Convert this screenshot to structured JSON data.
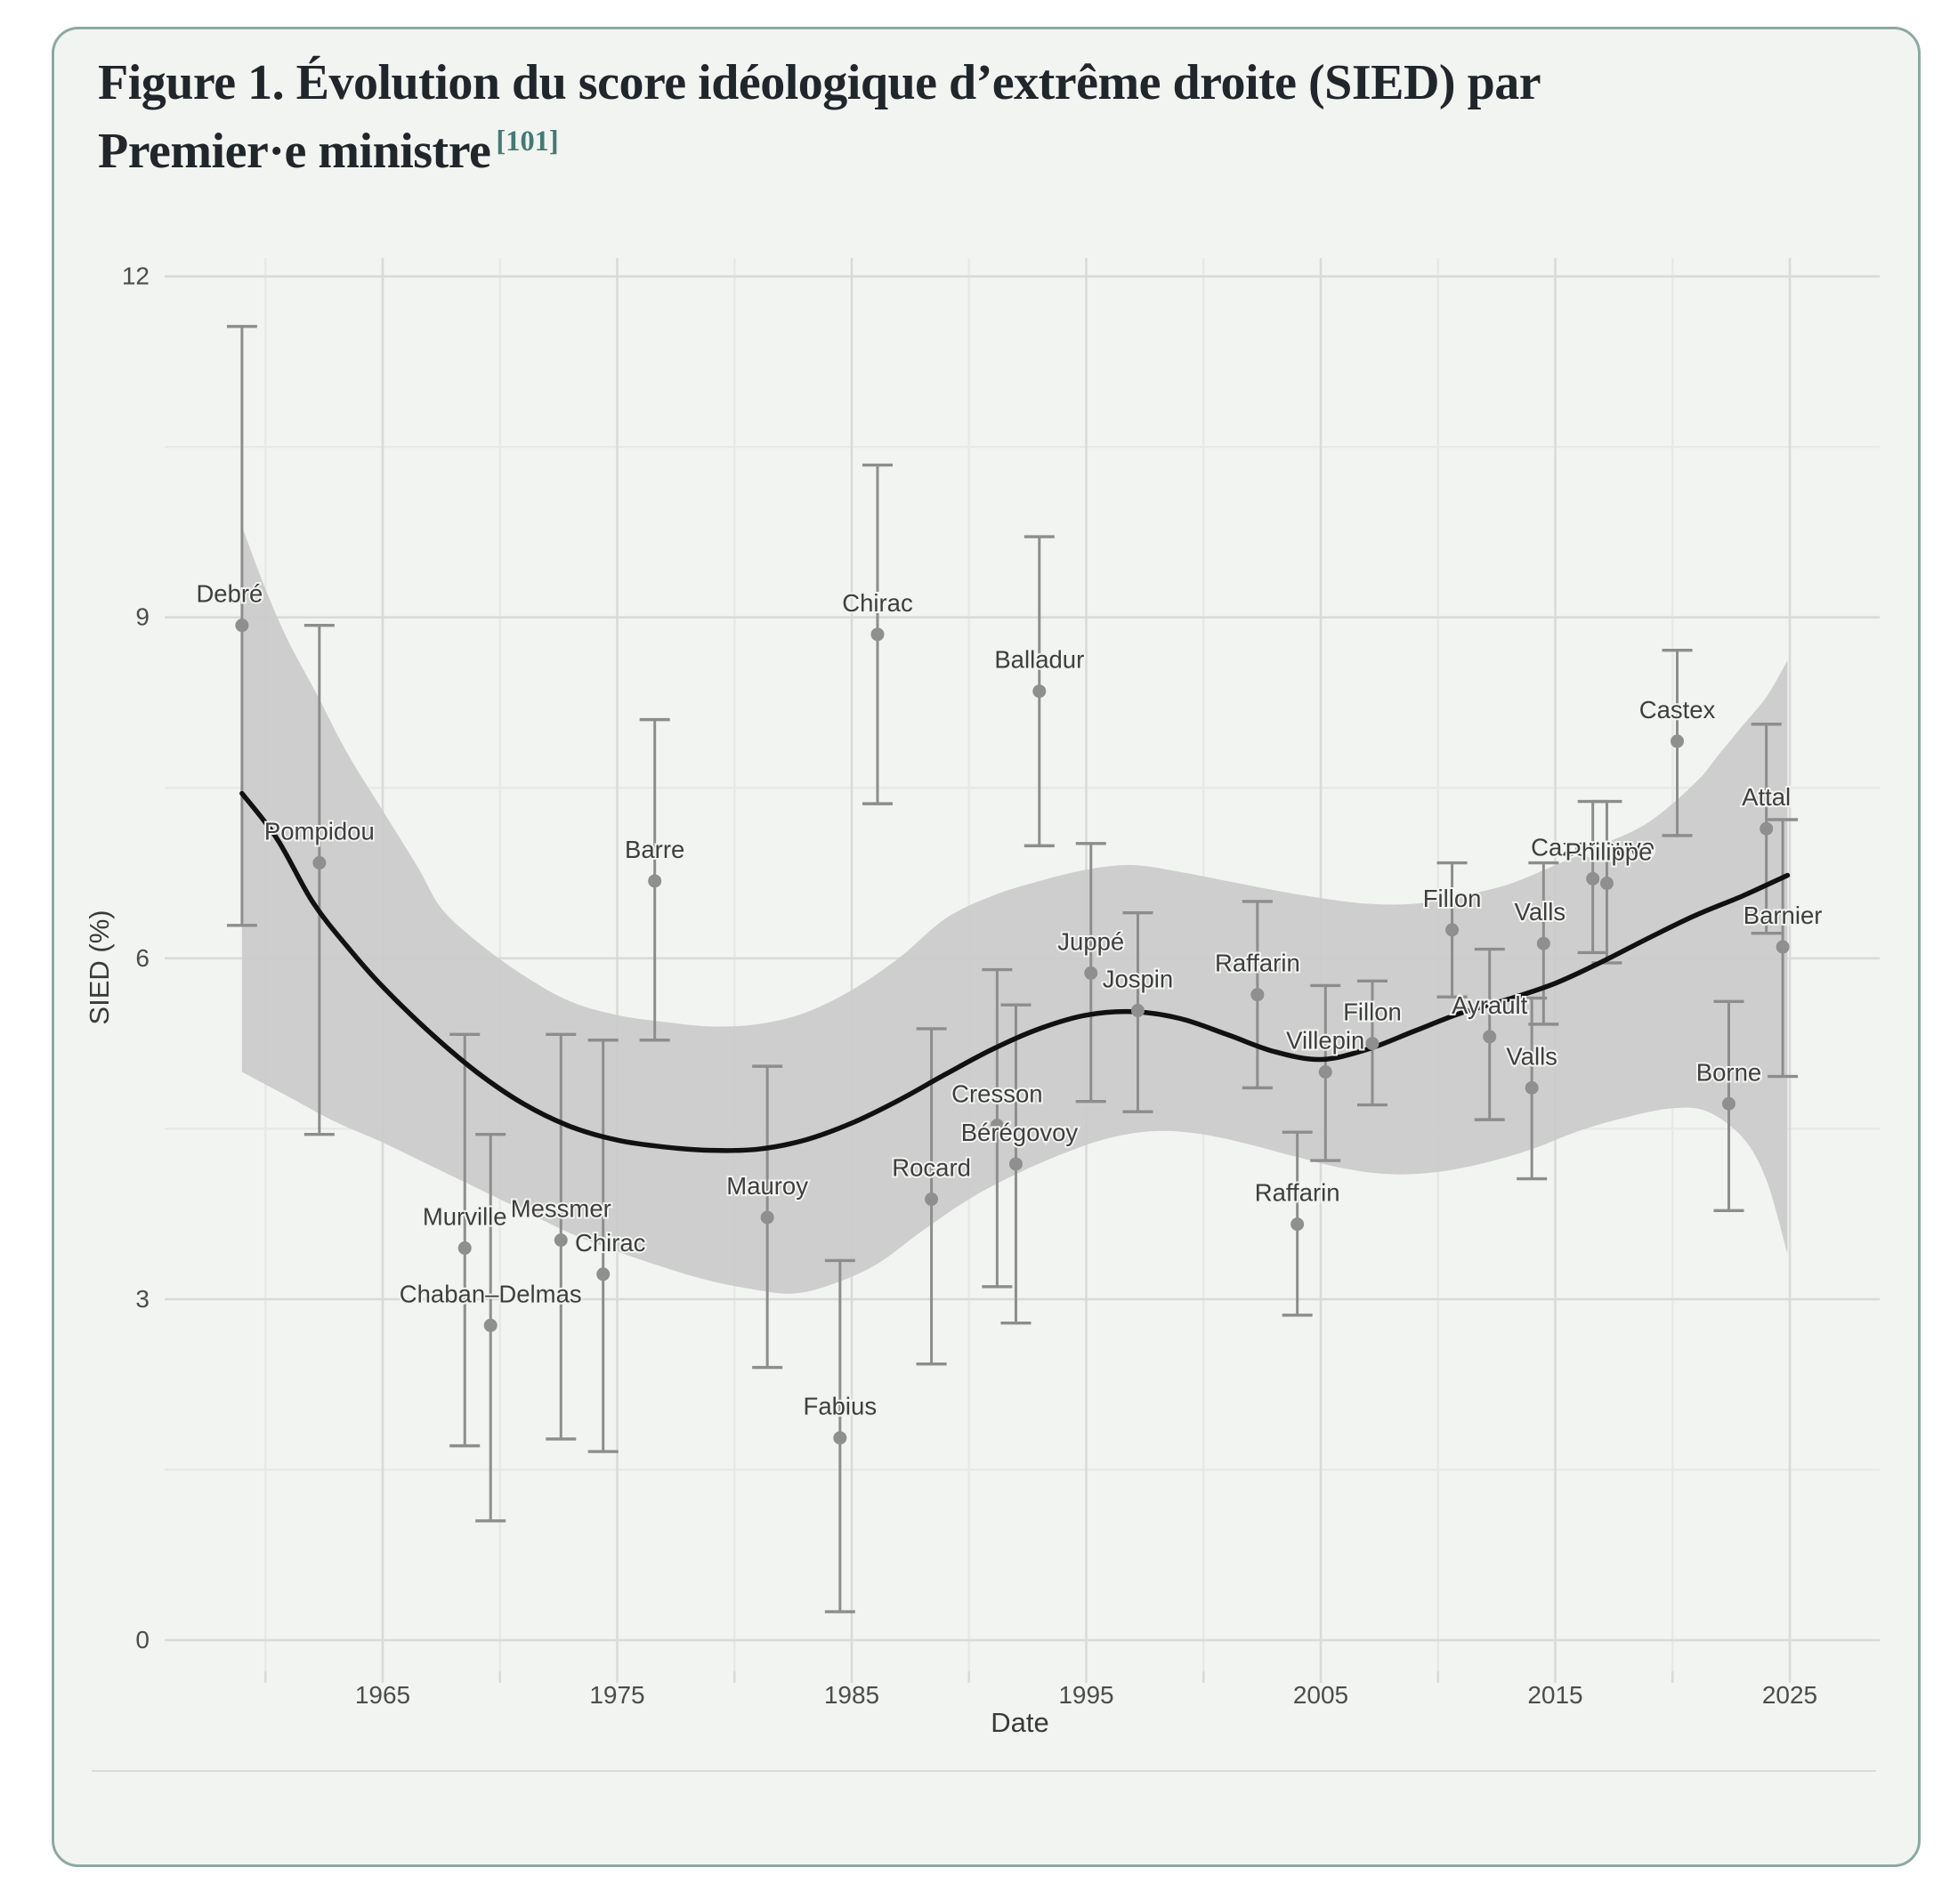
{
  "title": {
    "line1": "Figure 1. Évolution du score idéologique d’extrême droite (SIED) par",
    "line2": "Premier·e ministre",
    "superscript": "[101]"
  },
  "colors": {
    "card_border": "#8ba9a3",
    "card_bg": "#f2f4f1",
    "grid_major": "#d9dad9",
    "grid_minor": "#e7e8e7",
    "ribbon": "#cbcbcb",
    "curve": "#111111",
    "marker": "#8f8f8f",
    "errorbar": "#8d8d8d",
    "label_text": "#3e3e3e",
    "axis_text": "#4c4c4c",
    "axis_title_text": "#3a3a3a",
    "title_text": "#21262b",
    "superscript_accent": "#447a72",
    "divider": "#d8dbd9"
  },
  "chart_data": {
    "type": "scatter",
    "title": "Figure 1. Évolution du score idéologique d’extrême droite (SIED) par Premier·e ministre [101]",
    "xlabel": "Date",
    "ylabel": "SIED (%)",
    "x_domain": [
      1958.2,
      2026.8
    ],
    "y_domain": [
      0,
      12
    ],
    "grid": true,
    "legend": "none",
    "x_ticks": [
      1965,
      1975,
      1985,
      1995,
      2005,
      2015,
      2025
    ],
    "x_tick_labels": [
      "1965",
      "1975",
      "1985",
      "1995",
      "2005",
      "2015",
      "2025"
    ],
    "x_minor_ticks": [
      1960,
      1970,
      1980,
      1990,
      2000,
      2010,
      2020
    ],
    "y_ticks": [
      0,
      3,
      6,
      9,
      12
    ],
    "y_tick_labels": [
      "0",
      "3",
      "6",
      "9",
      "12"
    ],
    "y_minor_ticks": [
      1.5,
      4.5,
      7.5,
      10.5
    ],
    "points": [
      {
        "label": "Debré",
        "year": 1959.0,
        "value": 8.93,
        "lo": 6.29,
        "hi": 11.56,
        "dx": -14
      },
      {
        "label": "Pompidou",
        "year": 1962.3,
        "value": 6.84,
        "lo": 4.45,
        "hi": 8.93,
        "dx": 0
      },
      {
        "label": "Murville",
        "year": 1968.5,
        "value": 3.45,
        "lo": 1.71,
        "hi": 5.33,
        "dx": 0
      },
      {
        "label": "Chaban–Delmas",
        "year": 1969.6,
        "value": 2.77,
        "lo": 1.05,
        "hi": 4.45,
        "dx": 0
      },
      {
        "label": "Messmer",
        "year": 1972.6,
        "value": 3.52,
        "lo": 1.77,
        "hi": 5.33,
        "dx": 0
      },
      {
        "label": "Chirac",
        "year": 1974.4,
        "value": 3.22,
        "lo": 1.66,
        "hi": 5.28,
        "dx": 8
      },
      {
        "label": "Barre",
        "year": 1976.6,
        "value": 6.68,
        "lo": 5.28,
        "hi": 8.1,
        "dx": 0
      },
      {
        "label": "Mauroy",
        "year": 1981.4,
        "value": 3.72,
        "lo": 2.4,
        "hi": 5.05,
        "dx": 0
      },
      {
        "label": "Fabius",
        "year": 1984.5,
        "value": 1.78,
        "lo": 0.25,
        "hi": 3.34,
        "dx": 0
      },
      {
        "label": "Chirac",
        "year": 1986.1,
        "value": 8.85,
        "lo": 7.36,
        "hi": 10.34,
        "dx": 0
      },
      {
        "label": "Rocard",
        "year": 1988.4,
        "value": 3.88,
        "lo": 2.43,
        "hi": 5.38,
        "dx": 0
      },
      {
        "label": "Cresson",
        "year": 1991.2,
        "value": 4.53,
        "lo": 3.11,
        "hi": 5.9,
        "dx": 0
      },
      {
        "label": "Bérégovoy",
        "year": 1992.0,
        "value": 4.19,
        "lo": 2.79,
        "hi": 5.59,
        "dx": 4
      },
      {
        "label": "Balladur",
        "year": 1993.0,
        "value": 8.35,
        "lo": 6.99,
        "hi": 9.71,
        "dx": 0
      },
      {
        "label": "Juppé",
        "year": 1995.2,
        "value": 5.87,
        "lo": 4.74,
        "hi": 7.01,
        "dx": 0
      },
      {
        "label": "Jospin",
        "year": 1997.2,
        "value": 5.54,
        "lo": 4.65,
        "hi": 6.4,
        "dx": 0
      },
      {
        "label": "Raffarin",
        "year": 2002.3,
        "value": 5.68,
        "lo": 4.86,
        "hi": 6.5,
        "dx": 0
      },
      {
        "label": "Raffarin",
        "year": 2004.0,
        "value": 3.66,
        "lo": 2.86,
        "hi": 4.47,
        "dx": 0
      },
      {
        "label": "Villepin",
        "year": 2005.2,
        "value": 5.0,
        "lo": 4.22,
        "hi": 5.76,
        "dx": 0
      },
      {
        "label": "Fillon",
        "year": 2007.2,
        "value": 5.25,
        "lo": 4.71,
        "hi": 5.8,
        "dx": 0
      },
      {
        "label": "Fillon",
        "year": 2010.6,
        "value": 6.25,
        "lo": 5.66,
        "hi": 6.84,
        "dx": 0
      },
      {
        "label": "Ayrault",
        "year": 2012.2,
        "value": 5.31,
        "lo": 4.58,
        "hi": 6.08,
        "dx": 0
      },
      {
        "label": "Valls",
        "year": 2014.0,
        "value": 4.86,
        "lo": 4.06,
        "hi": 5.65,
        "dx": 0
      },
      {
        "label": "Valls",
        "year": 2014.5,
        "value": 6.13,
        "lo": 5.42,
        "hi": 6.84,
        "dx": -4
      },
      {
        "label": "Cazeneuve",
        "year": 2016.6,
        "value": 6.7,
        "lo": 6.05,
        "hi": 7.38,
        "dx": 0
      },
      {
        "label": "Philippe",
        "year": 2017.2,
        "value": 6.66,
        "lo": 5.96,
        "hi": 7.38,
        "dx": 2
      },
      {
        "label": "Castex",
        "year": 2020.2,
        "value": 7.91,
        "lo": 7.08,
        "hi": 8.71,
        "dx": 0
      },
      {
        "label": "Borne",
        "year": 2022.4,
        "value": 4.72,
        "lo": 3.78,
        "hi": 5.62,
        "dx": 0
      },
      {
        "label": "Attal",
        "year": 2024.0,
        "value": 7.14,
        "lo": 6.22,
        "hi": 8.06,
        "dx": 0
      },
      {
        "label": "Barnier",
        "year": 2024.7,
        "value": 6.1,
        "lo": 4.96,
        "hi": 7.22,
        "dx": 0
      }
    ],
    "smooth_line": [
      [
        1959.0,
        7.45
      ],
      [
        1960.5,
        7.05
      ],
      [
        1962,
        6.5
      ],
      [
        1963.5,
        6.1
      ],
      [
        1965,
        5.75
      ],
      [
        1967,
        5.35
      ],
      [
        1969,
        5.0
      ],
      [
        1971,
        4.72
      ],
      [
        1973,
        4.52
      ],
      [
        1975,
        4.4
      ],
      [
        1977,
        4.34
      ],
      [
        1979,
        4.31
      ],
      [
        1981,
        4.32
      ],
      [
        1983,
        4.4
      ],
      [
        1985,
        4.55
      ],
      [
        1987,
        4.75
      ],
      [
        1989,
        4.98
      ],
      [
        1991,
        5.2
      ],
      [
        1993,
        5.38
      ],
      [
        1995,
        5.5
      ],
      [
        1997,
        5.53
      ],
      [
        1999,
        5.47
      ],
      [
        2001,
        5.33
      ],
      [
        2003,
        5.18
      ],
      [
        2005,
        5.11
      ],
      [
        2007,
        5.2
      ],
      [
        2009,
        5.36
      ],
      [
        2011,
        5.52
      ],
      [
        2013,
        5.64
      ],
      [
        2015,
        5.78
      ],
      [
        2017,
        5.97
      ],
      [
        2019,
        6.18
      ],
      [
        2021,
        6.38
      ],
      [
        2023,
        6.55
      ],
      [
        2024.9,
        6.73
      ]
    ],
    "ribbon_upper": [
      [
        1959.0,
        9.8
      ],
      [
        1960,
        9.25
      ],
      [
        1961,
        8.78
      ],
      [
        1962.2,
        8.32
      ],
      [
        1963.5,
        7.8
      ],
      [
        1965,
        7.3
      ],
      [
        1966.5,
        6.8
      ],
      [
        1967.5,
        6.44
      ],
      [
        1969,
        6.15
      ],
      [
        1971,
        5.85
      ],
      [
        1973,
        5.62
      ],
      [
        1975,
        5.5
      ],
      [
        1977,
        5.44
      ],
      [
        1979,
        5.4
      ],
      [
        1981,
        5.42
      ],
      [
        1983,
        5.52
      ],
      [
        1985,
        5.72
      ],
      [
        1987,
        6.0
      ],
      [
        1989,
        6.35
      ],
      [
        1991,
        6.55
      ],
      [
        1993,
        6.68
      ],
      [
        1995,
        6.78
      ],
      [
        1997,
        6.82
      ],
      [
        1999,
        6.76
      ],
      [
        2001,
        6.68
      ],
      [
        2003,
        6.6
      ],
      [
        2005,
        6.53
      ],
      [
        2007,
        6.48
      ],
      [
        2009,
        6.48
      ],
      [
        2011,
        6.55
      ],
      [
        2013,
        6.65
      ],
      [
        2015,
        6.82
      ],
      [
        2017,
        7.0
      ],
      [
        2019,
        7.2
      ],
      [
        2021,
        7.55
      ],
      [
        2022,
        7.8
      ],
      [
        2023,
        8.05
      ],
      [
        2024,
        8.3
      ],
      [
        2024.9,
        8.62
      ]
    ],
    "ribbon_lower": [
      [
        1959.0,
        5.0
      ],
      [
        1961,
        4.78
      ],
      [
        1963,
        4.56
      ],
      [
        1965,
        4.38
      ],
      [
        1967,
        4.18
      ],
      [
        1969,
        3.98
      ],
      [
        1971,
        3.78
      ],
      [
        1973,
        3.58
      ],
      [
        1975,
        3.42
      ],
      [
        1977,
        3.28
      ],
      [
        1979,
        3.16
      ],
      [
        1981,
        3.08
      ],
      [
        1982.5,
        3.05
      ],
      [
        1984,
        3.12
      ],
      [
        1986,
        3.3
      ],
      [
        1988,
        3.6
      ],
      [
        1990,
        3.88
      ],
      [
        1992,
        4.1
      ],
      [
        1994,
        4.28
      ],
      [
        1996,
        4.42
      ],
      [
        1998,
        4.48
      ],
      [
        2000,
        4.45
      ],
      [
        2002,
        4.36
      ],
      [
        2004,
        4.25
      ],
      [
        2006,
        4.15
      ],
      [
        2008,
        4.1
      ],
      [
        2010,
        4.12
      ],
      [
        2012,
        4.2
      ],
      [
        2014,
        4.32
      ],
      [
        2016,
        4.48
      ],
      [
        2018,
        4.6
      ],
      [
        2020,
        4.68
      ],
      [
        2021.5,
        4.65
      ],
      [
        2023,
        4.42
      ],
      [
        2024,
        4.05
      ],
      [
        2024.9,
        3.4
      ]
    ]
  }
}
